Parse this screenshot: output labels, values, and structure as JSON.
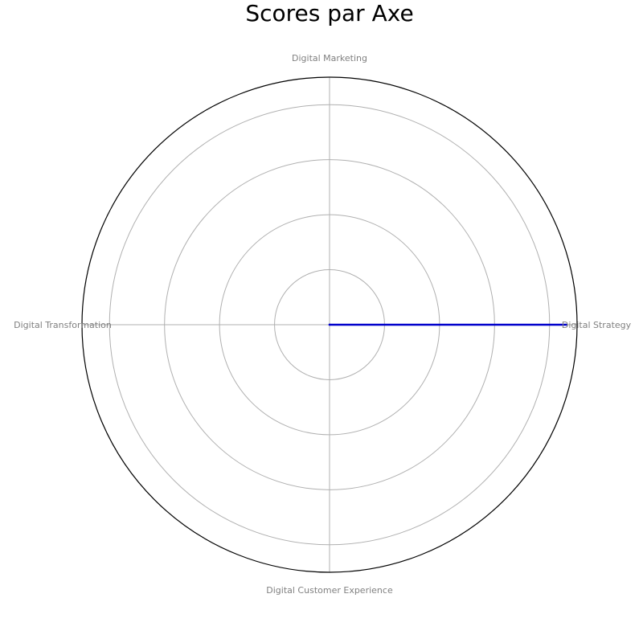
{
  "chart_data": {
    "type": "radar",
    "title": "Scores par Axe",
    "categories": [
      "Digital Strategy",
      "Digital Marketing",
      "Digital Transformation",
      "Digital Customer Experience"
    ],
    "series": [
      {
        "values": [
          4.3,
          0,
          0,
          0
        ]
      }
    ],
    "rlim": [
      0,
      4.5
    ],
    "rticks": [
      1,
      2,
      3,
      4
    ],
    "grid": true,
    "legend": "none"
  },
  "colors": {
    "series": "#0000cc",
    "grid": "#b0b0b0",
    "frame": "#000000",
    "axis_label": "#808080",
    "title": "#000000"
  }
}
